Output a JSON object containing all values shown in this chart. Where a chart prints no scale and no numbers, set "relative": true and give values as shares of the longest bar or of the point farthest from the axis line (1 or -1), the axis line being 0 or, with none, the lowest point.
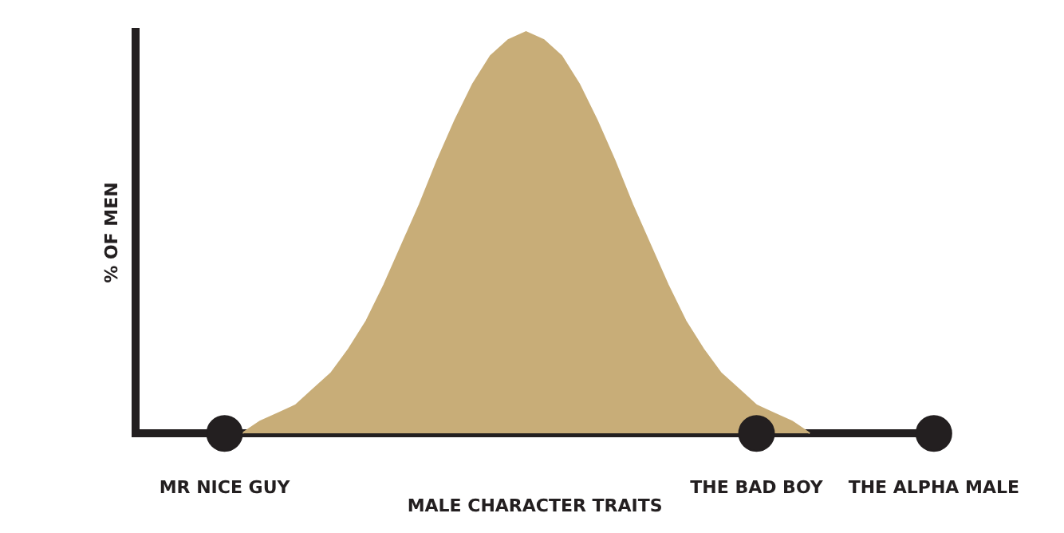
{
  "chart_data": {
    "type": "area",
    "relative": true,
    "xlabel": "MALE CHARACTER TRAITS",
    "ylabel": "% OF MEN",
    "categories": [
      null,
      null,
      null,
      null,
      null,
      "MR NICE GUY",
      null,
      null,
      null,
      null,
      null,
      null,
      null,
      null,
      null,
      null,
      null,
      null,
      null,
      null,
      null,
      null,
      null,
      null,
      null,
      null,
      null,
      null,
      null,
      null,
      null,
      null,
      null,
      null,
      null,
      "THE BAD BOY",
      null,
      null,
      null,
      null,
      null,
      null,
      null,
      null,
      null,
      "THE ALPHA MALE"
    ],
    "series": [
      {
        "type": "area",
        "color": "#c8ad78",
        "values": [
          null,
          null,
          null,
          null,
          null,
          null,
          0,
          0.03,
          0.05,
          0.07,
          0.11,
          0.15,
          0.21,
          0.28,
          0.37,
          0.47,
          0.57,
          0.68,
          0.78,
          0.87,
          0.94,
          0.98,
          1,
          0.98,
          0.94,
          0.87,
          0.78,
          0.68,
          0.57,
          0.47,
          0.37,
          0.28,
          0.21,
          0.15,
          0.11,
          0.07,
          0.05,
          0.03,
          0,
          null,
          null,
          null,
          null,
          null,
          null,
          null
        ]
      },
      {
        "type": "scatter",
        "color": "#231f20",
        "marker": "circle",
        "values": [
          null,
          null,
          null,
          null,
          null,
          0,
          null,
          null,
          null,
          null,
          null,
          null,
          null,
          null,
          null,
          null,
          null,
          null,
          null,
          null,
          null,
          null,
          null,
          null,
          null,
          null,
          null,
          null,
          null,
          null,
          null,
          null,
          null,
          null,
          null,
          0,
          null,
          null,
          null,
          null,
          null,
          null,
          null,
          null,
          null,
          0
        ]
      }
    ],
    "grid": false,
    "legend": false
  }
}
